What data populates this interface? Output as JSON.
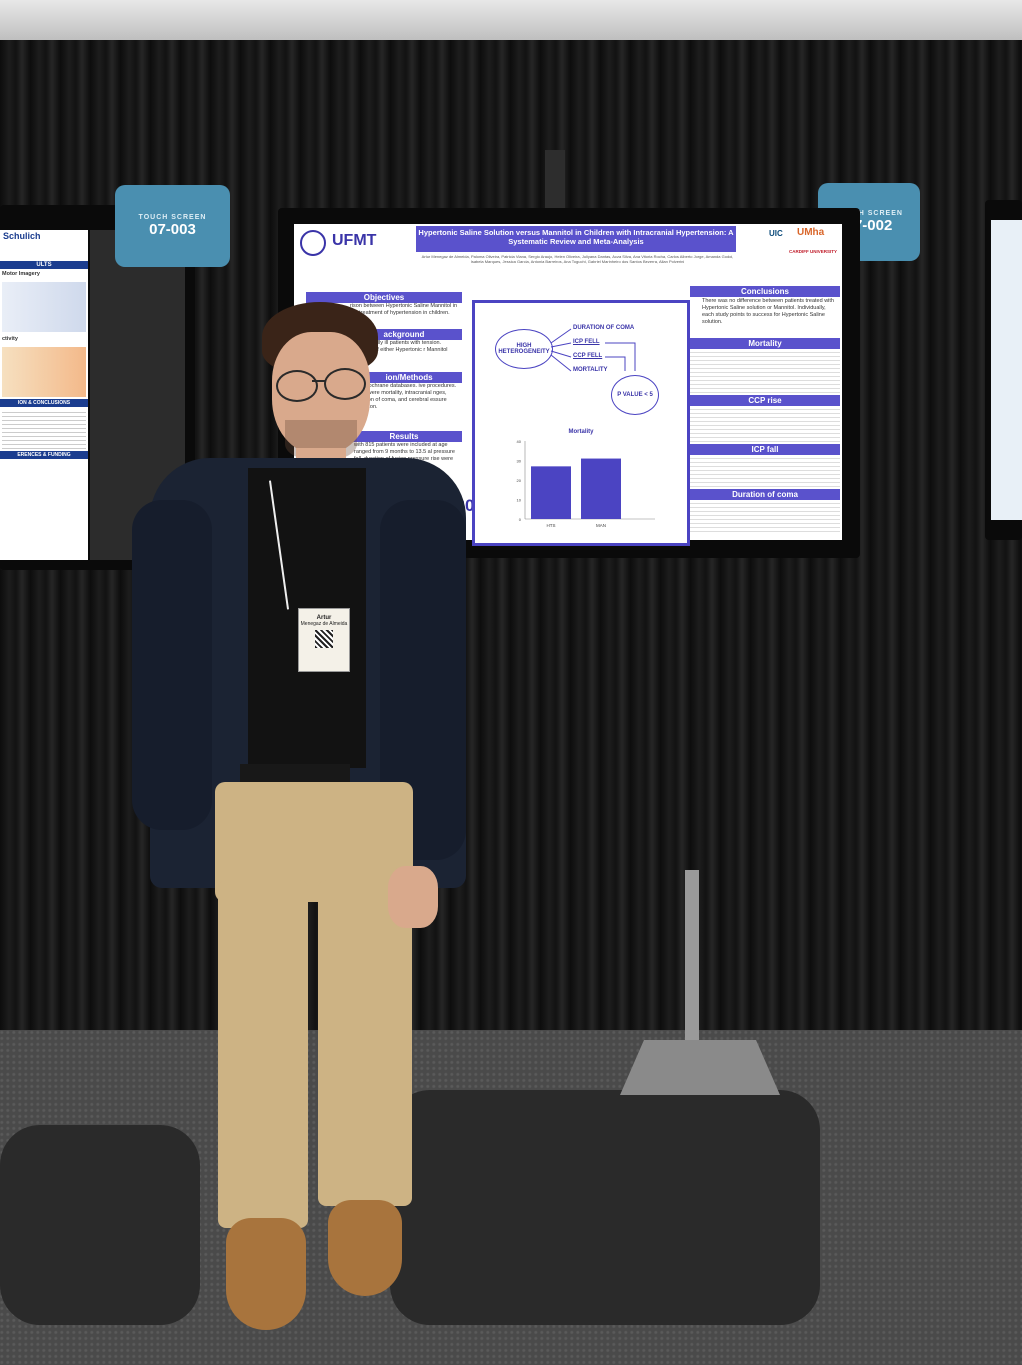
{
  "booths": {
    "left_sign": "07-003",
    "right_sign": "07-002",
    "sign_caption": "TOUCH SCREEN"
  },
  "left_poster": {
    "logo": "Schulich",
    "section1": "ULTS",
    "motor": "Motor Imagery",
    "activity": "ctivity",
    "section2": "ION & CONCLUSIONS",
    "section3": "ERENCES & FUNDING"
  },
  "poster": {
    "institution": "UFMT",
    "title": "Hypertonic Saline Solution versus Mannitol in Children with Intracranial Hypertension: A Systematic Review and Meta-Analysis",
    "authors": "Artur Menegaz de Almeida, Paloma Oliveira, Patricia Viana, Sergio Araujo, Helen Oliveira, Juliyana Dantas, Acza Silva, Ana Vitoria Rocha, Carlos Alberto Jorge, Amanda Godoi, Isabela Marques, Jessica Garcia, Antonia Barreiros, Ana Toguchi, Gabriel Marinheiro dos Santos Bezerra, Allan Polverini",
    "partner_logos": [
      "UIC",
      "UMha",
      "CARDIFF UNIVERSITY"
    ],
    "sections": {
      "objectives": "Objectives",
      "objectives_text": "rison between Hypertonic Saline Mannitol in the treatment of hypertension in children.",
      "background": "ackground",
      "background_text": "ed in critically ill patients with tension. uperiority of either Hypertonic r Mannitol",
      "methods": "ion/Methods",
      "methods_text": "and Cochrane databases. ive procedures. erest were mortality, intracranial nges, duration of coma, and cerebral essure elevation.",
      "results": "Results",
      "results_text": "with 815 patients were included at age ranged from 9 months to 13.5 al pressure fall, duration of fusion pressure rise were etween the groups.",
      "conclusions": "Conclusions",
      "conclusions_text": "There was no difference between patients treated with Hypertonic Saline solution or Mannitol. Individually, each study points to success for Hypertonic Saline solution.",
      "mortality": "Mortality",
      "ccp_rise": "CCP rise",
      "icp_fall": "ICP fall",
      "duration_of_coma": "Duration of coma"
    },
    "diagram": {
      "center": "HIGH HETEROGENEITY",
      "outcomes": [
        "DURATION OF COMA",
        "ICP FELL",
        "CCP FELL",
        "MORTALITY"
      ],
      "result": "P VALUE < 5"
    },
    "meeting": "AAN 2023"
  },
  "chart_data": {
    "type": "bar",
    "title": "Mortality",
    "categories": [
      "HTS",
      "MAN"
    ],
    "values": [
      27,
      31
    ],
    "yticks": [
      "40",
      "30",
      "20",
      "10",
      "0"
    ],
    "ylim": [
      0,
      40
    ]
  },
  "badge": {
    "first_name": "Artur",
    "last_name": "Menegaz de Almeida"
  }
}
